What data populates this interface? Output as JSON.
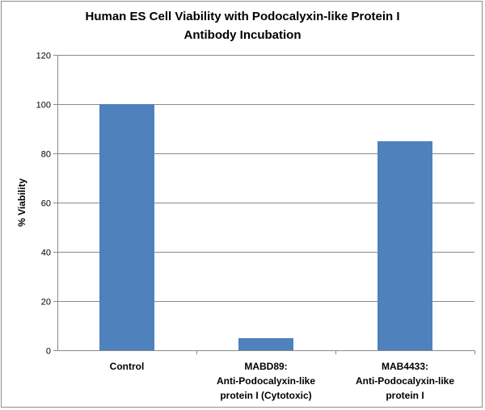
{
  "chart_data": {
    "type": "bar",
    "title_lines": [
      "Human ES Cell Viability with Podocalyxin-like Protein I",
      "Antibody Incubation"
    ],
    "ylabel": "% Viability",
    "xlabel": "",
    "ylim": [
      0,
      120
    ],
    "yticks": [
      0,
      20,
      40,
      60,
      80,
      100,
      120
    ],
    "grid": true,
    "categories": [
      [
        "Control"
      ],
      [
        "MABD89:",
        "Anti-Podocalyxin-like",
        "protein I (Cytotoxic)"
      ],
      [
        "MAB4433:",
        "Anti-Podocalyxin-like",
        "protein I"
      ]
    ],
    "values": [
      100,
      5,
      85
    ],
    "bar_color": "#4F81BD"
  }
}
